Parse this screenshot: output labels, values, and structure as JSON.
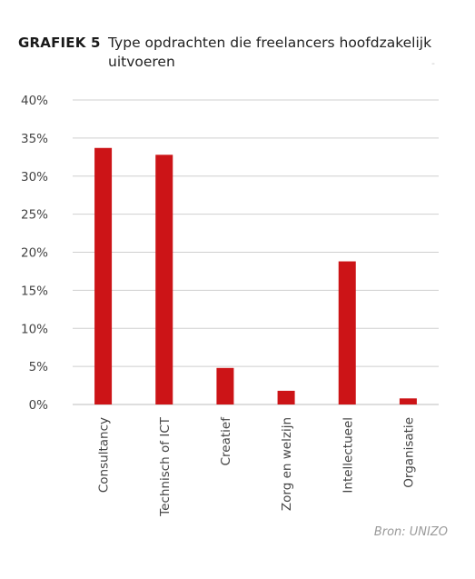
{
  "header": {
    "label": "GRAFIEK 5",
    "title": "Type opdrachten die freelancers hoofdzakelijk uitvoeren"
  },
  "source": "Bron: UNIZO",
  "colors": {
    "bar": "#cc1417",
    "grid": "#cfcfcf",
    "text": "#444444"
  },
  "chart_data": {
    "type": "bar",
    "title": "Type opdrachten die freelancers hoofdzakelijk uitvoeren",
    "categories": [
      "Consultancy",
      "Technisch of ICT",
      "Creatief",
      "Zorg en welzijn",
      "Intellectueel",
      "Organisatie"
    ],
    "values": [
      33.7,
      32.8,
      4.8,
      1.8,
      18.8,
      0.8
    ],
    "ylim": [
      0,
      40
    ],
    "yticks": [
      "0%",
      "5%",
      "10%",
      "15%",
      "20%",
      "25%",
      "30%",
      "35%",
      "40%"
    ],
    "xlabel": "",
    "ylabel": "",
    "grid": true
  }
}
